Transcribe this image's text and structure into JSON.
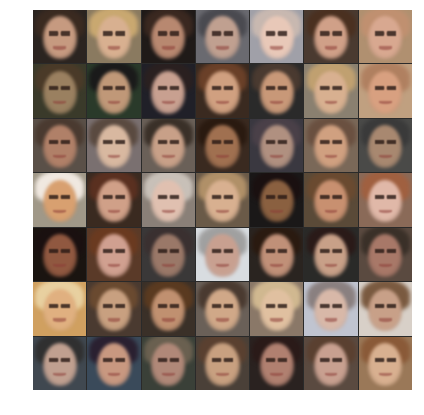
{
  "grid": {
    "rows": 7,
    "cols": 7
  },
  "tiles": [
    {
      "bg": "#2b2420",
      "skin": "#c69a80",
      "hair": "#3a2a20"
    },
    {
      "bg": "#8a7a60",
      "skin": "#d8b090",
      "hair": "#c9a870"
    },
    {
      "bg": "#1f1a18",
      "skin": "#b88870",
      "hair": "#3a2820"
    },
    {
      "bg": "#6a6a70",
      "skin": "#c0a090",
      "hair": "#4a4a50"
    },
    {
      "bg": "#a0a0a8",
      "skin": "#e8c8b8",
      "hair": "#c8b8b0"
    },
    {
      "bg": "#4a3a30",
      "skin": "#d0a088",
      "hair": "#4a3020"
    },
    {
      "bg": "#b09070",
      "skin": "#d8a890",
      "hair": "#c09070"
    },
    {
      "bg": "#3a3a2a",
      "skin": "#9a8060",
      "hair": "#4a3a28"
    },
    {
      "bg": "#2a3a2a",
      "skin": "#c09878",
      "hair": "#1a1a1a"
    },
    {
      "bg": "#202028",
      "skin": "#c8a090",
      "hair": "#2a2020"
    },
    {
      "bg": "#3a2a20",
      "skin": "#d0a080",
      "hair": "#6a4028"
    },
    {
      "bg": "#2a2a2a",
      "skin": "#c89878",
      "hair": "#4a3a30"
    },
    {
      "bg": "#8a8070",
      "skin": "#d8b090",
      "hair": "#c0a070"
    },
    {
      "bg": "#c0a080",
      "skin": "#d8a080",
      "hair": "#b08060"
    },
    {
      "bg": "#5a5048",
      "skin": "#b08068",
      "hair": "#4a3a30"
    },
    {
      "bg": "#7a7070",
      "skin": "#d8b8a0",
      "hair": "#5a4a40"
    },
    {
      "bg": "#6a6058",
      "skin": "#c8a088",
      "hair": "#3a3028"
    },
    {
      "bg": "#3a2a20",
      "skin": "#a07050",
      "hair": "#2a1a10"
    },
    {
      "bg": "#3a3840",
      "skin": "#b09080",
      "hair": "#4a4048"
    },
    {
      "bg": "#7a6858",
      "skin": "#d0a080",
      "hair": "#6a5040"
    },
    {
      "bg": "#4a4a48",
      "skin": "#a88870",
      "hair": "#3a3a3a"
    },
    {
      "bg": "#a09888",
      "skin": "#d8a070",
      "hair": "#f0e8e0"
    },
    {
      "bg": "#3a2a20",
      "skin": "#d0a088",
      "hair": "#5a3020"
    },
    {
      "bg": "#8a8078",
      "skin": "#e0c0b0",
      "hair": "#c8c0b8"
    },
    {
      "bg": "#6a5a48",
      "skin": "#d8b090",
      "hair": "#b09068"
    },
    {
      "bg": "#1a1818",
      "skin": "#8a6040",
      "hair": "#1a1010"
    },
    {
      "bg": "#5a4a38",
      "skin": "#c89070",
      "hair": "#6a4a30"
    },
    {
      "bg": "#8a6a58",
      "skin": "#e0b8a8",
      "hair": "#a06040"
    },
    {
      "bg": "#1a1410",
      "skin": "#905840",
      "hair": "#1a1010"
    },
    {
      "bg": "#5a3a28",
      "skin": "#d0a090",
      "hair": "#6a3a20"
    },
    {
      "bg": "#3a3838",
      "skin": "#9a7868",
      "hair": "#3a3030"
    },
    {
      "bg": "#d8dce0",
      "skin": "#c8a090",
      "hair": "#a0a0a0"
    },
    {
      "bg": "#2a2420",
      "skin": "#c09078",
      "hair": "#2a1a10"
    },
    {
      "bg": "#2a2a28",
      "skin": "#c8a088",
      "hair": "#2a1a18"
    },
    {
      "bg": "#5a4a40",
      "skin": "#a87868",
      "hair": "#3a3028"
    },
    {
      "bg": "#d0a060",
      "skin": "#e0b080",
      "hair": "#e8d0a0"
    },
    {
      "bg": "#4a3a30",
      "skin": "#c8a080",
      "hair": "#6a4a30"
    },
    {
      "bg": "#3a3028",
      "skin": "#c09070",
      "hair": "#5a3a20"
    },
    {
      "bg": "#6a6058",
      "skin": "#d0a888",
      "hair": "#4a3a30"
    },
    {
      "bg": "#8a7868",
      "skin": "#e0c0a0",
      "hair": "#d0b890"
    },
    {
      "bg": "#c0c4d0",
      "skin": "#d8b8a8",
      "hair": "#8a8080"
    },
    {
      "bg": "#d8d0c8",
      "skin": "#c8a088",
      "hair": "#7a5a40"
    },
    {
      "bg": "#404850",
      "skin": "#c0a090",
      "hair": "#303030"
    },
    {
      "bg": "#3a4a5a",
      "skin": "#c89880",
      "hair": "#2a2030"
    },
    {
      "bg": "#3a4038",
      "skin": "#b08878",
      "hair": "#6a6050"
    },
    {
      "bg": "#4a4038",
      "skin": "#c8a080",
      "hair": "#5a4030"
    },
    {
      "bg": "#2a2220",
      "skin": "#b08070",
      "hair": "#2a1a18"
    },
    {
      "bg": "#5a4a40",
      "skin": "#c8a090",
      "hair": "#5a4030"
    },
    {
      "bg": "#9a7858",
      "skin": "#d8b090",
      "hair": "#8a5a38"
    }
  ]
}
